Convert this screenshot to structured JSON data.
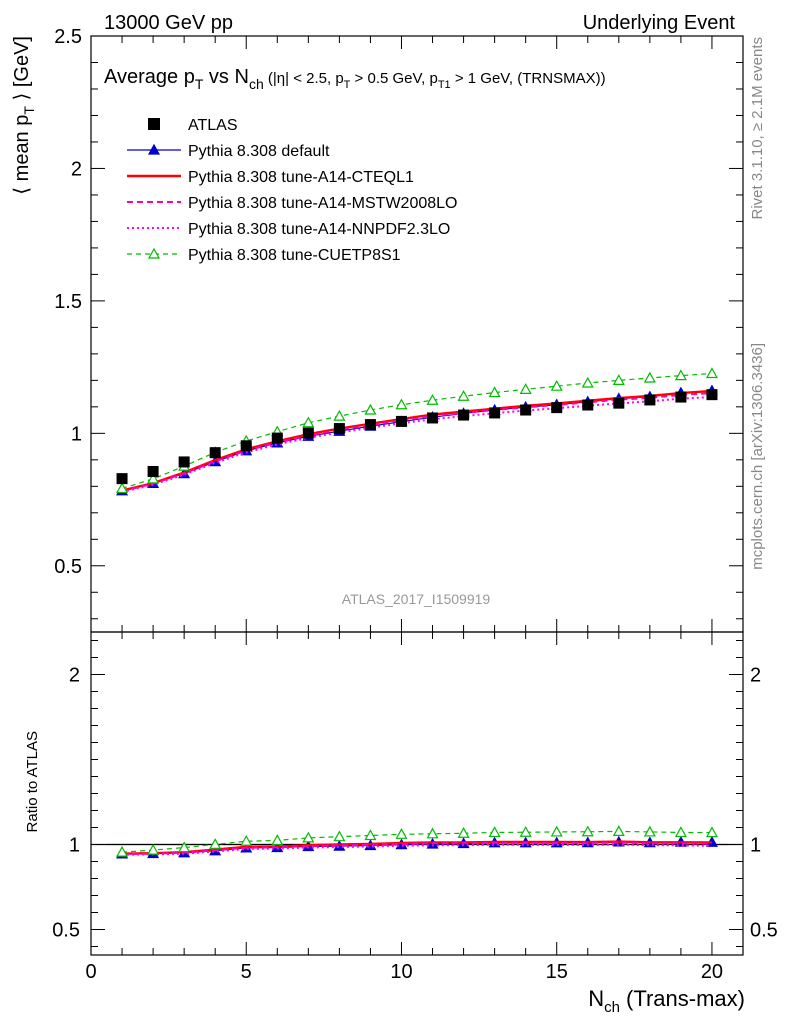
{
  "header": {
    "left": "13000 GeV pp",
    "right": "Underlying Event"
  },
  "side_labels": {
    "rivet": "Rivet 3.1.10, ≥ 2.1M events",
    "mcplots": "mcplots.cern.ch [arXiv:1306.3436]"
  },
  "watermark": "ATLAS_2017_I1509919",
  "chart_data": {
    "type": "line",
    "title": "Average p_T vs N_ch (|η| < 2.5, p_T > 0.5 GeV, p_T1 > 1 GeV, (TRNSMAX))",
    "title_parts": {
      "main_a": "Average p",
      "main_b": "T",
      "main_c": " vs N",
      "main_d": "ch",
      "cut_a": " (|η| < 2.5, p",
      "cut_b": "T",
      "cut_c": " > 0.5 GeV, p",
      "cut_d": "T1",
      "cut_e": " > 1 GeV, (TRNSMAX))"
    },
    "xlabel": "N_ch (Trans-max)",
    "xlabel_parts": {
      "a": "N",
      "b": "ch",
      "c": " (Trans-max)"
    },
    "ylabel": "⟨ mean p_T ⟩ [GeV]",
    "ylabel_parts": {
      "a": "⟨ mean p",
      "b": "T",
      "c": " ⟩ [GeV]"
    },
    "ratio_ylabel": "Ratio to ATLAS",
    "xlim": [
      0,
      21
    ],
    "ylim": [
      0.25,
      2.5
    ],
    "ratio_ylim": [
      0.35,
      2.25
    ],
    "x_ticks": [
      0,
      5,
      10,
      15,
      20
    ],
    "x_tick_labels": [
      "0",
      "5",
      "10",
      "15",
      "20"
    ],
    "y_ticks": [
      0.5,
      1,
      1.5,
      2,
      2.5
    ],
    "y_tick_labels": [
      "0.5",
      "1",
      "1.5",
      "2",
      "2.5"
    ],
    "ratio_y_ticks": [
      0.5,
      1,
      2
    ],
    "ratio_y_tick_labels": [
      "0.5",
      "1",
      "2"
    ],
    "legend_position": "top-left",
    "x": [
      1,
      2,
      3,
      4,
      5,
      6,
      7,
      8,
      9,
      10,
      11,
      12,
      13,
      14,
      15,
      16,
      17,
      18,
      19,
      20
    ],
    "series": [
      {
        "name": "ATLAS",
        "color": "#000000",
        "style": "data",
        "values": [
          0.829,
          0.856,
          0.892,
          0.927,
          0.953,
          0.982,
          1.001,
          1.018,
          1.033,
          1.045,
          1.058,
          1.069,
          1.077,
          1.088,
          1.097,
          1.107,
          1.114,
          1.126,
          1.137,
          1.146
        ],
        "ratio": [
          1,
          1,
          1,
          1,
          1,
          1,
          1,
          1,
          1,
          1,
          1,
          1,
          1,
          1,
          1,
          1,
          1,
          1,
          1,
          1
        ]
      },
      {
        "name": "Pythia 8.308 default",
        "color": "#0000cc",
        "style": "solid-triangle",
        "values": [
          0.783,
          0.811,
          0.848,
          0.893,
          0.934,
          0.964,
          0.989,
          1.008,
          1.027,
          1.044,
          1.061,
          1.075,
          1.088,
          1.099,
          1.108,
          1.119,
          1.131,
          1.138,
          1.153,
          1.161
        ],
        "ratio": [
          0.945,
          0.947,
          0.951,
          0.963,
          0.98,
          0.982,
          0.988,
          0.99,
          0.994,
          0.999,
          1.003,
          1.006,
          1.01,
          1.01,
          1.01,
          1.011,
          1.015,
          1.011,
          1.014,
          1.013
        ]
      },
      {
        "name": "Pythia 8.308 tune-A14-CTEQL1",
        "color": "#ff0000",
        "style": "solid-thick",
        "values": [
          0.784,
          0.812,
          0.852,
          0.899,
          0.94,
          0.97,
          0.997,
          1.018,
          1.036,
          1.054,
          1.071,
          1.082,
          1.093,
          1.104,
          1.113,
          1.123,
          1.133,
          1.141,
          1.152,
          1.16
        ],
        "ratio": [
          0.946,
          0.949,
          0.955,
          0.97,
          0.986,
          0.988,
          0.996,
          1.0,
          1.003,
          1.009,
          1.012,
          1.012,
          1.015,
          1.015,
          1.015,
          1.014,
          1.017,
          1.013,
          1.013,
          1.012
        ]
      },
      {
        "name": "Pythia 8.308 tune-A14-MSTW2008LO",
        "color": "#ff00aa",
        "style": "dashed",
        "values": [
          0.782,
          0.81,
          0.849,
          0.895,
          0.935,
          0.966,
          0.992,
          1.013,
          1.031,
          1.049,
          1.065,
          1.077,
          1.088,
          1.098,
          1.107,
          1.117,
          1.127,
          1.134,
          1.145,
          1.152
        ],
        "ratio": [
          0.943,
          0.946,
          0.952,
          0.966,
          0.981,
          0.984,
          0.991,
          0.995,
          0.998,
          1.004,
          1.007,
          1.007,
          1.01,
          1.009,
          1.009,
          1.009,
          1.012,
          1.007,
          1.007,
          1.005
        ]
      },
      {
        "name": "Pythia 8.308 tune-A14-NNPDF2.3LO",
        "color": "#ff00ff",
        "style": "dotted",
        "values": [
          0.779,
          0.806,
          0.844,
          0.889,
          0.928,
          0.958,
          0.983,
          1.003,
          1.021,
          1.038,
          1.053,
          1.065,
          1.076,
          1.086,
          1.095,
          1.104,
          1.113,
          1.121,
          1.131,
          1.137
        ],
        "ratio": [
          0.94,
          0.942,
          0.946,
          0.959,
          0.974,
          0.976,
          0.982,
          0.985,
          0.988,
          0.993,
          0.995,
          0.996,
          0.999,
          0.998,
          0.998,
          0.997,
          0.999,
          0.996,
          0.995,
          0.992
        ]
      },
      {
        "name": "Pythia 8.308 tune-CUETP8S1",
        "color": "#00bb00",
        "style": "dashed-open-triangle",
        "values": [
          0.792,
          0.828,
          0.876,
          0.928,
          0.971,
          1.006,
          1.04,
          1.065,
          1.088,
          1.108,
          1.125,
          1.14,
          1.154,
          1.166,
          1.178,
          1.19,
          1.2,
          1.209,
          1.218,
          1.226
        ],
        "ratio": [
          0.955,
          0.967,
          0.982,
          1.001,
          1.019,
          1.024,
          1.039,
          1.046,
          1.053,
          1.06,
          1.063,
          1.066,
          1.071,
          1.072,
          1.074,
          1.075,
          1.077,
          1.074,
          1.071,
          1.07
        ]
      }
    ],
    "data_errors": [
      0.006,
      0.006,
      0.006,
      0.006,
      0.006,
      0.006,
      0.006,
      0.006,
      0.006,
      0.006,
      0.006,
      0.006,
      0.006,
      0.006,
      0.006,
      0.006,
      0.006,
      0.006,
      0.006,
      0.006
    ],
    "ratio_band_color": "#ffff00"
  }
}
